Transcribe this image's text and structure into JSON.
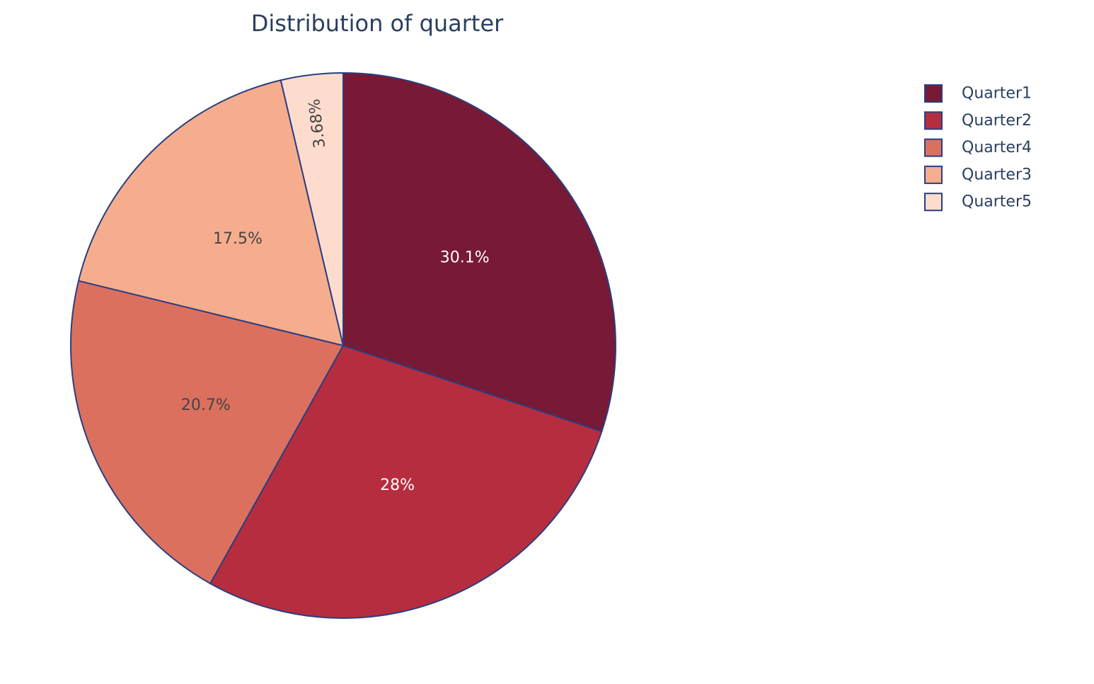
{
  "chart_data": {
    "type": "pie",
    "title": "Distribution of quarter",
    "labels": [
      "Quarter1",
      "Quarter2",
      "Quarter4",
      "Quarter3",
      "Quarter5"
    ],
    "values": [
      30.1,
      28.0,
      20.7,
      17.5,
      3.68
    ],
    "percent_labels": [
      "30.1%",
      "28%",
      "20.7%",
      "17.5%",
      "3.68%"
    ],
    "colors": [
      "#781935",
      "#b62d3f",
      "#dc705f",
      "#f5ad8e",
      "#fddcce"
    ],
    "label_colors": [
      "#ffffff",
      "#ffffff",
      "#444444",
      "#444444",
      "#444444"
    ],
    "slice_border_color": "#2a3f7f",
    "direction": "clockwise",
    "start": "top",
    "legend_position": "top-right",
    "legend": [
      "Quarter1",
      "Quarter2",
      "Quarter4",
      "Quarter3",
      "Quarter5"
    ]
  }
}
